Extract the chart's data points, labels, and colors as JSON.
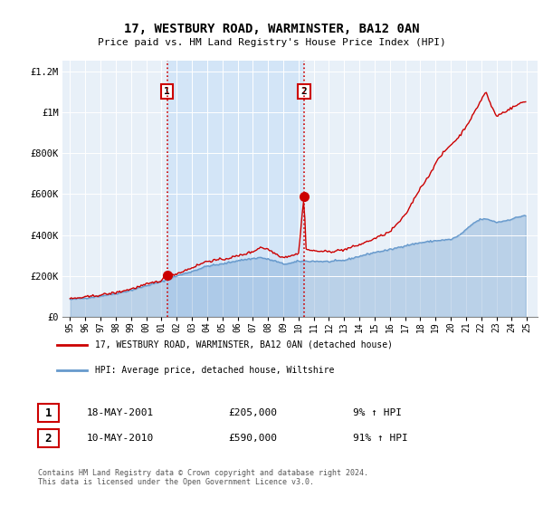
{
  "title": "17, WESTBURY ROAD, WARMINSTER, BA12 0AN",
  "subtitle": "Price paid vs. HM Land Registry's House Price Index (HPI)",
  "legend_line1": "17, WESTBURY ROAD, WARMINSTER, BA12 0AN (detached house)",
  "legend_line2": "HPI: Average price, detached house, Wiltshire",
  "annotation1_label": "1",
  "annotation1_date": "18-MAY-2001",
  "annotation1_price": "£205,000",
  "annotation1_hpi": "9% ↑ HPI",
  "annotation2_label": "2",
  "annotation2_date": "10-MAY-2010",
  "annotation2_price": "£590,000",
  "annotation2_hpi": "91% ↑ HPI",
  "copyright": "Contains HM Land Registry data © Crown copyright and database right 2024.\nThis data is licensed under the Open Government Licence v3.0.",
  "hpi_color": "#6699cc",
  "price_color": "#cc0000",
  "shade_color": "#d0e4f7",
  "bg_color": "#e8f0f8",
  "sale1_x": 2001.38,
  "sale1_price": 205000,
  "sale2_x": 2010.36,
  "sale2_price": 590000,
  "ylim_max": 1250000,
  "xlim_min": 1994.5,
  "xlim_max": 2025.7
}
